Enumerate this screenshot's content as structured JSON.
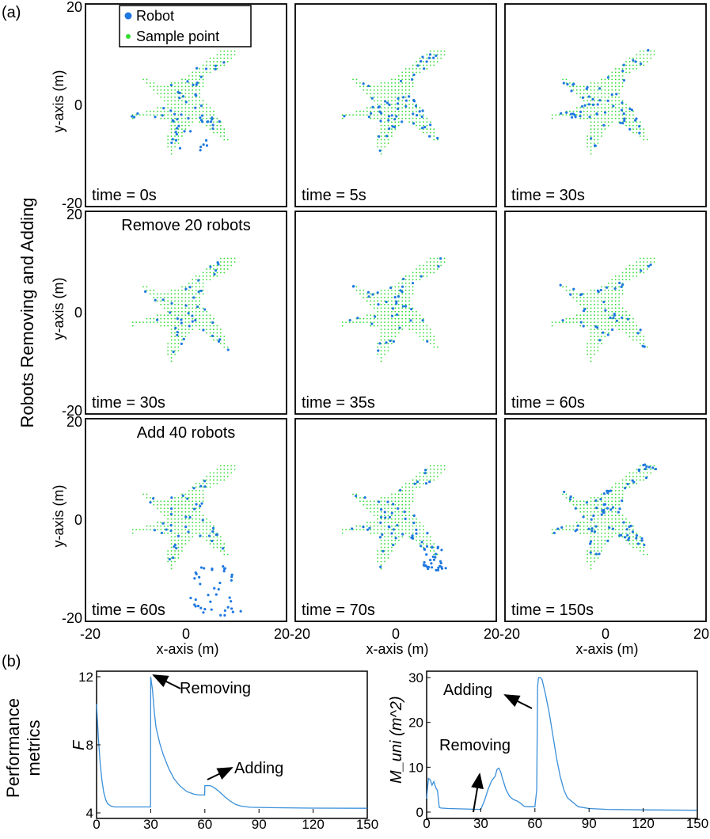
{
  "figure": {
    "panel_a": "(a)",
    "panel_b": "(b)",
    "row_title": "Robots Removing and Adding",
    "metrics_title_line1": "Performance",
    "metrics_title_line2": "metrics"
  },
  "colors": {
    "robot": "#1f78e0",
    "sample": "#33dd33",
    "line": "#3a8fd9",
    "frame": "#000000"
  },
  "chart_data": [
    {
      "type": "scatter",
      "title": "Robots Removing and Adding",
      "xlabel": "x-axis (m)",
      "ylabel": "y-axis (m)",
      "xlim": [
        -20,
        20
      ],
      "ylim": [
        -20,
        20
      ],
      "x_ticks": [
        "-20",
        "0",
        "20"
      ],
      "y_ticks": [
        "20",
        "0",
        "-20"
      ],
      "legend": [
        "Robot",
        "Sample point"
      ],
      "panels": [
        {
          "time": "time = 0s",
          "annotation": "",
          "robot_layout": "initial"
        },
        {
          "time": "time = 5s",
          "annotation": "",
          "robot_layout": "spread"
        },
        {
          "time": "time = 30s",
          "annotation": "",
          "robot_layout": "uniform"
        },
        {
          "time": "time = 30s",
          "annotation": "Remove 20 robots",
          "robot_layout": "removed"
        },
        {
          "time": "time = 35s",
          "annotation": "",
          "robot_layout": "recovering"
        },
        {
          "time": "time = 60s",
          "annotation": "",
          "robot_layout": "uniform_small"
        },
        {
          "time": "time = 60s",
          "annotation": "Add 40 robots",
          "robot_layout": "added_cluster"
        },
        {
          "time": "time = 70s",
          "annotation": "",
          "robot_layout": "cluster_entering"
        },
        {
          "time": "time = 150s",
          "annotation": "",
          "robot_layout": "uniform_large"
        }
      ]
    },
    {
      "type": "line",
      "ylabel": "F",
      "xlabel": "",
      "xlim": [
        0,
        150
      ],
      "ylim": [
        4,
        12
      ],
      "x_ticks": [
        "0",
        "30",
        "60",
        "90",
        "120",
        "150"
      ],
      "y_ticks": [
        "12",
        "8",
        "4"
      ],
      "annotations": [
        "Removing",
        "Adding"
      ],
      "series": [
        {
          "name": "F",
          "points": [
            [
              0,
              10.4
            ],
            [
              1,
              8.4
            ],
            [
              2,
              6.9
            ],
            [
              3,
              5.9
            ],
            [
              4,
              5.2
            ],
            [
              5,
              4.8
            ],
            [
              6,
              4.55
            ],
            [
              8,
              4.4
            ],
            [
              10,
              4.35
            ],
            [
              15,
              4.35
            ],
            [
              20,
              4.35
            ],
            [
              25,
              4.35
            ],
            [
              29.9,
              4.35
            ],
            [
              30,
              12.2
            ],
            [
              31,
              11.2
            ],
            [
              32,
              9.9
            ],
            [
              33,
              9.0
            ],
            [
              35,
              8.1
            ],
            [
              37,
              7.4
            ],
            [
              40,
              6.6
            ],
            [
              43,
              6.0
            ],
            [
              46,
              5.6
            ],
            [
              50,
              5.25
            ],
            [
              54,
              5.1
            ],
            [
              57,
              5.05
            ],
            [
              59.9,
              5.05
            ],
            [
              60,
              5.6
            ],
            [
              63,
              5.6
            ],
            [
              65,
              5.5
            ],
            [
              68,
              5.25
            ],
            [
              71,
              4.95
            ],
            [
              74,
              4.7
            ],
            [
              77,
              4.5
            ],
            [
              80,
              4.4
            ],
            [
              85,
              4.33
            ],
            [
              90,
              4.32
            ],
            [
              100,
              4.3
            ],
            [
              120,
              4.28
            ],
            [
              150,
              4.27
            ]
          ]
        }
      ]
    },
    {
      "type": "line",
      "ylabel": "M_uni (m^2)",
      "xlabel": "",
      "xlim": [
        0,
        150
      ],
      "ylim": [
        0,
        30
      ],
      "x_ticks": [
        "0",
        "30",
        "60",
        "90",
        "120",
        "150"
      ],
      "y_ticks": [
        "30",
        "20",
        "10",
        "0"
      ],
      "annotations": [
        "Adding",
        "Removing"
      ],
      "series": [
        {
          "name": "M_uni",
          "points": [
            [
              0,
              3.0
            ],
            [
              1,
              7.5
            ],
            [
              2,
              7.2
            ],
            [
              3,
              6.0
            ],
            [
              4,
              6.8
            ],
            [
              5,
              5.5
            ],
            [
              6,
              4.8
            ],
            [
              7,
              1.0
            ],
            [
              8,
              0.9
            ],
            [
              12,
              0.8
            ],
            [
              20,
              0.7
            ],
            [
              29.9,
              0.6
            ],
            [
              30,
              0.6
            ],
            [
              32,
              2.5
            ],
            [
              34,
              5.0
            ],
            [
              36,
              7.0
            ],
            [
              38,
              8.0
            ],
            [
              39,
              9.5
            ],
            [
              40,
              9.8
            ],
            [
              41,
              9.0
            ],
            [
              42,
              7.5
            ],
            [
              44,
              5.0
            ],
            [
              46,
              3.5
            ],
            [
              48,
              2.8
            ],
            [
              50,
              2.5
            ],
            [
              52,
              2.0
            ],
            [
              54,
              1.3
            ],
            [
              56,
              1.2
            ],
            [
              59.9,
              1.2
            ],
            [
              60,
              1.2
            ],
            [
              61,
              5.0
            ],
            [
              61.5,
              28.0
            ],
            [
              62,
              30.5
            ],
            [
              63,
              30.0
            ],
            [
              64,
              29.5
            ],
            [
              66,
              26.0
            ],
            [
              68,
              22.0
            ],
            [
              70,
              17.0
            ],
            [
              72,
              12.0
            ],
            [
              74,
              8.0
            ],
            [
              76,
              5.0
            ],
            [
              78,
              3.2
            ],
            [
              80,
              2.5
            ],
            [
              84,
              1.2
            ],
            [
              90,
              0.8
            ],
            [
              100,
              0.6
            ],
            [
              120,
              0.5
            ],
            [
              150,
              0.4
            ]
          ]
        }
      ]
    }
  ]
}
